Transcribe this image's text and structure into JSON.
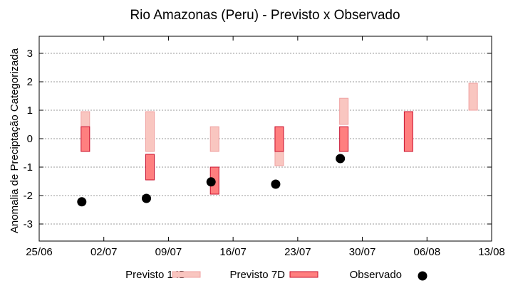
{
  "chart_data": {
    "type": "bar",
    "title": "Rio Amazonas (Peru) - Previsto x Observado",
    "ylabel": "Anomalia de Preciptação Categorizada",
    "xlabel": "",
    "x_ticks": [
      "25/06",
      "02/07",
      "09/07",
      "16/07",
      "23/07",
      "30/07",
      "06/08",
      "13/08"
    ],
    "y_ticks": [
      "-3",
      "-2",
      "-1",
      "0",
      "1",
      "2",
      "3"
    ],
    "xlim": [
      "25/06",
      "13/08"
    ],
    "ylim": [
      -3.6,
      3.6
    ],
    "grid": true,
    "legend_position": "bottom",
    "series": [
      {
        "name": "Previsto 14D",
        "kind": "range",
        "fill": "#f9c6c0",
        "stroke": "#f0a0a0",
        "ranges": [
          {
            "date": "30/06",
            "low": -0.45,
            "high": 0.95
          },
          {
            "date": "07/07",
            "low": -0.45,
            "high": 0.95
          },
          {
            "date": "14/07",
            "low": -0.45,
            "high": 0.42
          },
          {
            "date": "21/07",
            "low": -0.95,
            "high": 0.42
          },
          {
            "date": "28/07",
            "low": 0.5,
            "high": 1.42
          },
          {
            "date": "11/08",
            "low": 1.0,
            "high": 1.95
          }
        ]
      },
      {
        "name": "Previsto 7D",
        "kind": "range",
        "fill": "#ff7f7f",
        "stroke": "#c8102e",
        "ranges": [
          {
            "date": "30/06",
            "low": -0.45,
            "high": 0.42
          },
          {
            "date": "07/07",
            "low": -1.45,
            "high": -0.55
          },
          {
            "date": "14/07",
            "low": -1.95,
            "high": -1.0
          },
          {
            "date": "21/07",
            "low": -0.45,
            "high": 0.42
          },
          {
            "date": "28/07",
            "low": -0.45,
            "high": 0.42
          },
          {
            "date": "04/08",
            "low": -0.45,
            "high": 0.95
          }
        ]
      },
      {
        "name": "Observado",
        "kind": "point",
        "color": "#000000",
        "points": [
          {
            "date": "30/06",
            "value": -2.22
          },
          {
            "date": "07/07",
            "value": -2.1
          },
          {
            "date": "14/07",
            "value": -1.52
          },
          {
            "date": "21/07",
            "value": -1.6
          },
          {
            "date": "28/07",
            "value": -0.7
          }
        ]
      }
    ]
  }
}
